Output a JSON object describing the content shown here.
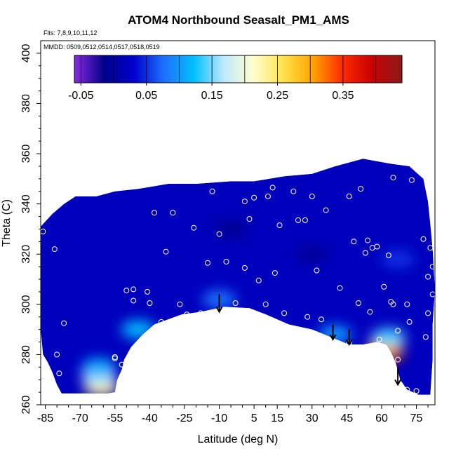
{
  "chart_data": {
    "type": "heatmap",
    "title": "ATOM4 Northbound Seasalt_PM1_AMS",
    "notes": [
      "Flts: 7,8,9,10,11,12",
      "MMDD: 0509,0512,0514,0517,0518,0519"
    ],
    "xlabel": "Latitude (deg N)",
    "ylabel": "Theta (C)",
    "xlim": [
      -87,
      83
    ],
    "ylim": [
      260,
      405
    ],
    "x_ticks": [
      "-85",
      "-70",
      "-55",
      "-40",
      "-25",
      "-10",
      "5",
      "15",
      "30",
      "45",
      "60",
      "75"
    ],
    "x_tick_values": [
      -85,
      -70,
      -55,
      -40,
      -25,
      -10,
      5,
      15,
      30,
      45,
      60,
      75
    ],
    "y_ticks": [
      "260",
      "280",
      "300",
      "320",
      "340",
      "360",
      "380",
      "400"
    ],
    "y_tick_values": [
      260,
      280,
      300,
      320,
      340,
      360,
      380,
      400
    ],
    "colorbar": {
      "min": -0.06,
      "max": 0.44,
      "tick_labels": [
        "-0.05",
        "0.05",
        "0.15",
        "0.25",
        "0.35"
      ],
      "tick_values": [
        -0.05,
        0.05,
        0.15,
        0.25,
        0.35
      ],
      "colors": [
        "#8a2be2",
        "#00008b",
        "#0000cd",
        "#1e6fff",
        "#00bfff",
        "#bfe8ff",
        "#ffffd0",
        "#ffe34d",
        "#ffa500",
        "#ff2a00",
        "#c80000",
        "#8b1a1a"
      ]
    },
    "background_value": 0.02,
    "field_features": [
      {
        "x": -61,
        "y": 267,
        "value": 0.24
      },
      {
        "x": -62,
        "y": 271,
        "value": 0.16
      },
      {
        "x": -62,
        "y": 275,
        "value": 0.11
      },
      {
        "x": -45,
        "y": 290,
        "value": 0.12
      },
      {
        "x": -10,
        "y": 302,
        "value": 0.08
      },
      {
        "x": 40,
        "y": 288,
        "value": 0.1
      },
      {
        "x": 62,
        "y": 280,
        "value": 0.4
      },
      {
        "x": 62,
        "y": 284,
        "value": 0.28
      },
      {
        "x": 63,
        "y": 287,
        "value": 0.14
      },
      {
        "x": 67,
        "y": 318,
        "value": 0.05
      },
      {
        "x": -5,
        "y": 330,
        "value": -0.01
      },
      {
        "x": 30,
        "y": 320,
        "value": -0.005
      }
    ],
    "sample_points": [
      {
        "x": -86,
        "y": 329
      },
      {
        "x": -81,
        "y": 322
      },
      {
        "x": -77,
        "y": 292.5
      },
      {
        "x": -80,
        "y": 280
      },
      {
        "x": -79,
        "y": 272.5
      },
      {
        "x": -55,
        "y": 278.5
      },
      {
        "x": -55,
        "y": 279
      },
      {
        "x": -52,
        "y": 276
      },
      {
        "x": -50,
        "y": 305.5
      },
      {
        "x": -47,
        "y": 306
      },
      {
        "x": -47,
        "y": 301.5
      },
      {
        "x": -41,
        "y": 305
      },
      {
        "x": -40,
        "y": 300.5
      },
      {
        "x": -38,
        "y": 336.5
      },
      {
        "x": -35,
        "y": 293
      },
      {
        "x": -33,
        "y": 321
      },
      {
        "x": -30,
        "y": 336.5
      },
      {
        "x": -27,
        "y": 300
      },
      {
        "x": -24,
        "y": 296
      },
      {
        "x": -21,
        "y": 330.5
      },
      {
        "x": -18,
        "y": 296.5
      },
      {
        "x": -15,
        "y": 316.5
      },
      {
        "x": -13,
        "y": 345
      },
      {
        "x": -10,
        "y": 328
      },
      {
        "x": -7,
        "y": 317
      },
      {
        "x": -3,
        "y": 300.5
      },
      {
        "x": 1,
        "y": 314.5
      },
      {
        "x": 1,
        "y": 341
      },
      {
        "x": 3,
        "y": 334
      },
      {
        "x": 5,
        "y": 342.5
      },
      {
        "x": 7,
        "y": 309.5
      },
      {
        "x": 10,
        "y": 300
      },
      {
        "x": 11,
        "y": 343
      },
      {
        "x": 13,
        "y": 346.5
      },
      {
        "x": 14,
        "y": 312.5
      },
      {
        "x": 16,
        "y": 331.5
      },
      {
        "x": 18,
        "y": 296.5
      },
      {
        "x": 22,
        "y": 345
      },
      {
        "x": 24,
        "y": 333.5
      },
      {
        "x": 27,
        "y": 333.5
      },
      {
        "x": 28,
        "y": 295
      },
      {
        "x": 30,
        "y": 343
      },
      {
        "x": 32,
        "y": 313.5
      },
      {
        "x": 34,
        "y": 294
      },
      {
        "x": 36,
        "y": 337.5
      },
      {
        "x": 42,
        "y": 306.5
      },
      {
        "x": 48,
        "y": 325
      },
      {
        "x": 50,
        "y": 300.5
      },
      {
        "x": 51,
        "y": 346
      },
      {
        "x": 53,
        "y": 320.5
      },
      {
        "x": 54,
        "y": 325.5
      },
      {
        "x": 55,
        "y": 297
      },
      {
        "x": 56,
        "y": 322.5
      },
      {
        "x": 58,
        "y": 323
      },
      {
        "x": 59,
        "y": 286
      },
      {
        "x": 61,
        "y": 307
      },
      {
        "x": 63,
        "y": 319.5
      },
      {
        "x": 64,
        "y": 301
      },
      {
        "x": 65,
        "y": 300
      },
      {
        "x": 65,
        "y": 350.5
      },
      {
        "x": 67,
        "y": 289.5
      },
      {
        "x": 67,
        "y": 278
      },
      {
        "x": 71,
        "y": 266
      },
      {
        "x": 71,
        "y": 300
      },
      {
        "x": 72,
        "y": 293
      },
      {
        "x": 73,
        "y": 349.5
      },
      {
        "x": 75,
        "y": 265.5
      },
      {
        "x": 78,
        "y": 326
      },
      {
        "x": 79,
        "y": 287
      },
      {
        "x": 79,
        "y": 354
      },
      {
        "x": 80,
        "y": 296.5
      },
      {
        "x": 80,
        "y": 311
      },
      {
        "x": 81,
        "y": 322.5
      },
      {
        "x": 82,
        "y": 315
      },
      {
        "x": 82,
        "y": 304
      },
      {
        "x": 46,
        "y": 284.5
      },
      {
        "x": 46,
        "y": 343
      }
    ],
    "arrows": [
      {
        "x": -10,
        "y_start": 304,
        "y_end": 297
      },
      {
        "x": 39,
        "y_start": 292,
        "y_end": 286
      },
      {
        "x": 46,
        "y_start": 290,
        "y_end": 284
      },
      {
        "x": 67,
        "y_start": 275,
        "y_end": 268
      }
    ]
  }
}
